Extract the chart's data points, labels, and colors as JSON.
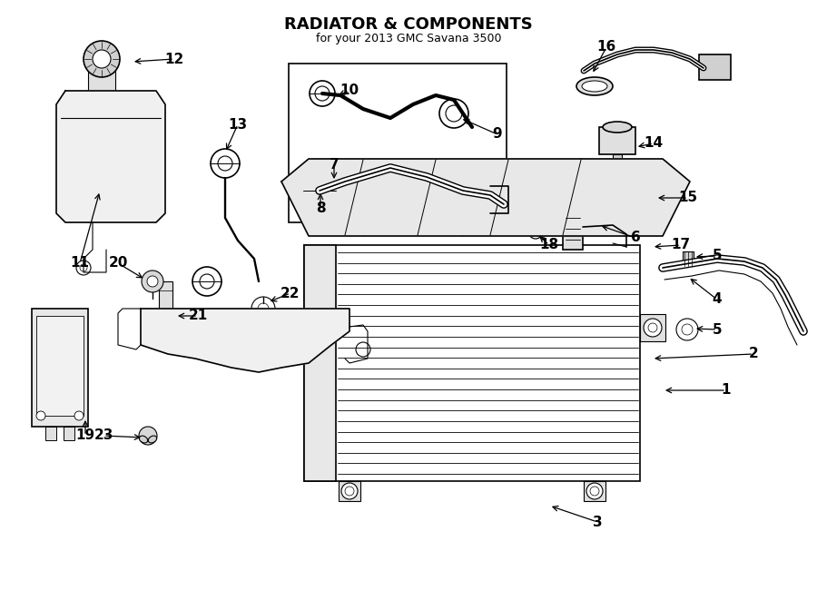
{
  "title": "RADIATOR & COMPONENTS",
  "subtitle": "for your 2013 GMC Savana 3500",
  "bg_color": "#ffffff",
  "lc": "#000000",
  "fig_width": 9.0,
  "fig_height": 6.61,
  "dpi": 100
}
